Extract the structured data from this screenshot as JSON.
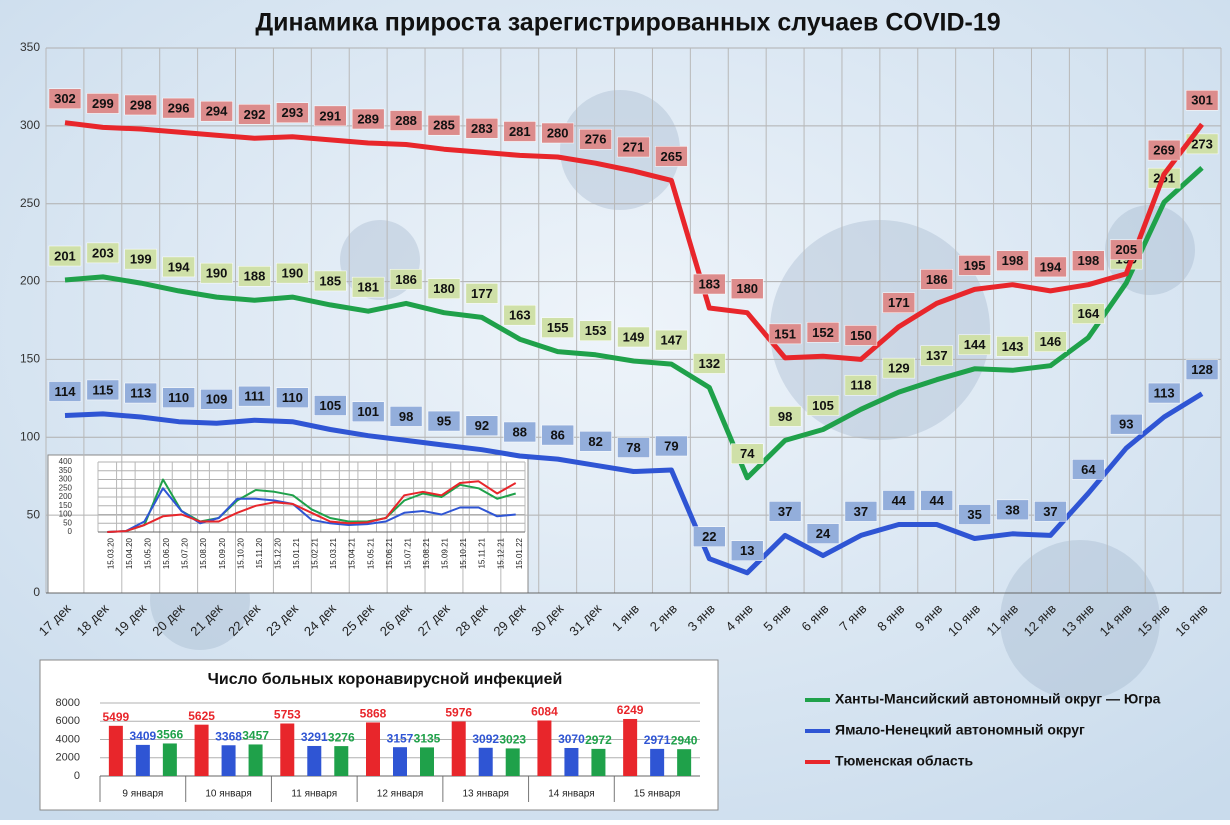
{
  "chart_data": [
    {
      "type": "line",
      "title": "Динамика прироста зарегистрированных случаев COVID-19",
      "categories": [
        "17 дек",
        "18 дек",
        "19 дек",
        "20 дек",
        "21 дек",
        "22 дек",
        "23 дек",
        "24 дек",
        "25 дек",
        "26 дек",
        "27 дек",
        "28 дек",
        "29 дек",
        "30 дек",
        "31 дек",
        "1 янв",
        "2 янв",
        "3 янв",
        "4 янв",
        "5 янв",
        "6 янв",
        "7 янв",
        "8 янв",
        "9 янв",
        "10 янв",
        "11 янв",
        "12 янв",
        "13 янв",
        "14 янв",
        "15 янв",
        "16 янв"
      ],
      "series": [
        {
          "name": "Ханты-Мансийский автономный округ — Югра",
          "color": "#1fa14a",
          "label_color": "#cfe0a8",
          "values": [
            201,
            203,
            199,
            194,
            190,
            188,
            190,
            185,
            181,
            186,
            180,
            177,
            163,
            155,
            153,
            149,
            147,
            132,
            74,
            98,
            105,
            118,
            129,
            137,
            144,
            143,
            146,
            164,
            199,
            251,
            273
          ]
        },
        {
          "name": "Ямало-Ненецкий автономный округ",
          "color": "#2f55d4",
          "label_color": "#93aedb",
          "values": [
            114,
            115,
            113,
            110,
            109,
            111,
            110,
            105,
            101,
            98,
            95,
            92,
            88,
            86,
            82,
            78,
            79,
            22,
            13,
            37,
            24,
            37,
            44,
            44,
            35,
            38,
            37,
            64,
            93,
            113,
            128
          ]
        },
        {
          "name": "Тюменская область",
          "color": "#e8262b",
          "label_color": "#dc8c8c",
          "values": [
            302,
            299,
            298,
            296,
            294,
            292,
            293,
            291,
            289,
            288,
            285,
            283,
            281,
            280,
            276,
            271,
            265,
            183,
            180,
            151,
            152,
            150,
            171,
            186,
            195,
            198,
            194,
            198,
            205,
            269,
            301
          ]
        }
      ],
      "ylim": [
        0,
        350
      ],
      "yticks": [
        0,
        50,
        100,
        150,
        200,
        250,
        300,
        350
      ],
      "grid": true,
      "legend": "bottom-right"
    },
    {
      "type": "line",
      "categories": [
        "15.03.20",
        "15.04.20",
        "15.05.20",
        "15.06.20",
        "15.07.20",
        "15.08.20",
        "15.09.20",
        "15.10.20",
        "15.11.20",
        "15.12.20",
        "15.01.21",
        "15.02.21",
        "15.03.21",
        "15.04.21",
        "15.05.21",
        "15.06.21",
        "15.07.21",
        "15.08.21",
        "15.09.21",
        "15.10.21",
        "15.11.21",
        "15.12.21",
        "15.01.22"
      ],
      "series": [
        {
          "color": "#1fa14a",
          "values": [
            0,
            5,
            40,
            300,
            120,
            60,
            80,
            180,
            240,
            230,
            210,
            130,
            80,
            60,
            60,
            80,
            180,
            220,
            200,
            270,
            250,
            190,
            220
          ]
        },
        {
          "color": "#2f55d4",
          "values": [
            0,
            5,
            60,
            250,
            120,
            50,
            80,
            190,
            190,
            180,
            160,
            70,
            50,
            40,
            45,
            60,
            110,
            120,
            100,
            140,
            140,
            90,
            100
          ]
        },
        {
          "color": "#e8262b",
          "values": [
            0,
            5,
            40,
            90,
            100,
            60,
            60,
            110,
            150,
            170,
            160,
            110,
            60,
            50,
            55,
            80,
            210,
            230,
            210,
            280,
            290,
            220,
            280
          ]
        }
      ],
      "ylim": [
        0,
        400
      ],
      "yticks": [
        0,
        50,
        100,
        150,
        200,
        250,
        300,
        350,
        400
      ],
      "grid": true
    },
    {
      "type": "bar",
      "title": "Число больных коронавирусной  инфекцией",
      "categories": [
        "9 января",
        "10 января",
        "11 января",
        "12 января",
        "13 января",
        "14 января",
        "15 января"
      ],
      "series": [
        {
          "color": "#e8262b",
          "values": [
            5499,
            5625,
            5753,
            5868,
            5976,
            6084,
            6249
          ]
        },
        {
          "color": "#2f55d4",
          "values": [
            3409,
            3368,
            3291,
            3157,
            3092,
            3070,
            2971
          ]
        },
        {
          "color": "#1fa14a",
          "values": [
            3566,
            3457,
            3276,
            3135,
            3023,
            2972,
            2940
          ]
        }
      ],
      "ylim": [
        0,
        8000
      ],
      "yticks": [
        0,
        2000,
        4000,
        6000,
        8000
      ],
      "grid": true
    }
  ]
}
